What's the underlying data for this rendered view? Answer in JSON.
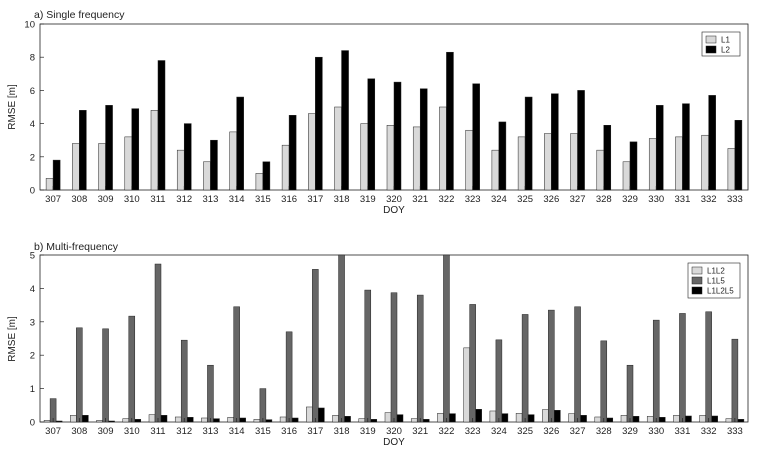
{
  "chart_data": [
    {
      "type": "bar",
      "title": "a) Single frequency",
      "xlabel": "DOY",
      "ylabel": "RMSE [m]",
      "ylim": [
        0,
        10
      ],
      "yticks": [
        0,
        2,
        4,
        6,
        8,
        10
      ],
      "grid": false,
      "legend_position": "top-right",
      "categories": [
        "307",
        "308",
        "309",
        "310",
        "311",
        "312",
        "313",
        "314",
        "315",
        "316",
        "317",
        "318",
        "319",
        "320",
        "321",
        "322",
        "323",
        "324",
        "325",
        "326",
        "327",
        "328",
        "329",
        "330",
        "331",
        "332",
        "333"
      ],
      "series": [
        {
          "name": "L1",
          "color": "#d9d9d9",
          "values": [
            0.7,
            2.8,
            2.8,
            3.2,
            4.8,
            2.4,
            1.7,
            3.5,
            1.0,
            2.7,
            4.6,
            5.0,
            4.0,
            3.9,
            3.8,
            5.0,
            3.6,
            2.4,
            3.2,
            3.4,
            3.4,
            2.4,
            1.7,
            3.1,
            3.2,
            3.3,
            2.5
          ]
        },
        {
          "name": "L2",
          "color": "#000000",
          "values": [
            1.8,
            4.8,
            5.1,
            4.9,
            7.8,
            4.0,
            3.0,
            5.6,
            1.7,
            4.5,
            8.0,
            8.4,
            6.7,
            6.5,
            6.1,
            8.3,
            6.4,
            4.1,
            5.6,
            5.8,
            6.0,
            3.9,
            2.9,
            5.1,
            5.2,
            5.7,
            4.2
          ]
        }
      ]
    },
    {
      "type": "bar",
      "title": "b) Multi-frequency",
      "xlabel": "DOY",
      "ylabel": "RMSE [m]",
      "ylim": [
        0,
        5
      ],
      "yticks": [
        0,
        1,
        2,
        3,
        4,
        5
      ],
      "grid": false,
      "legend_position": "top-right",
      "categories": [
        "307",
        "308",
        "309",
        "310",
        "311",
        "312",
        "313",
        "314",
        "315",
        "316",
        "317",
        "318",
        "319",
        "320",
        "321",
        "322",
        "323",
        "324",
        "325",
        "326",
        "327",
        "328",
        "329",
        "330",
        "331",
        "332",
        "333"
      ],
      "series": [
        {
          "name": "L1L2",
          "color": "#d9d9d9",
          "values": [
            0.05,
            0.2,
            0.05,
            0.1,
            0.22,
            0.15,
            0.12,
            0.14,
            0.08,
            0.15,
            0.45,
            0.2,
            0.1,
            0.28,
            0.1,
            0.26,
            2.22,
            0.33,
            0.26,
            0.37,
            0.25,
            0.15,
            0.2,
            0.17,
            0.2,
            0.2,
            0.1
          ]
        },
        {
          "name": "L1L5",
          "color": "#666666",
          "values": [
            0.7,
            2.82,
            2.79,
            3.17,
            4.73,
            2.45,
            1.7,
            3.45,
            1.0,
            2.7,
            4.57,
            5.0,
            3.95,
            3.87,
            3.8,
            5.0,
            3.52,
            2.46,
            3.22,
            3.35,
            3.45,
            2.43,
            1.7,
            3.05,
            3.25,
            3.3,
            2.48
          ]
        },
        {
          "name": "L1L2L5",
          "color": "#000000",
          "values": [
            0.03,
            0.2,
            0.03,
            0.08,
            0.2,
            0.14,
            0.1,
            0.12,
            0.07,
            0.12,
            0.42,
            0.17,
            0.08,
            0.22,
            0.08,
            0.25,
            0.38,
            0.25,
            0.22,
            0.35,
            0.2,
            0.12,
            0.17,
            0.14,
            0.18,
            0.18,
            0.08
          ]
        }
      ]
    }
  ]
}
